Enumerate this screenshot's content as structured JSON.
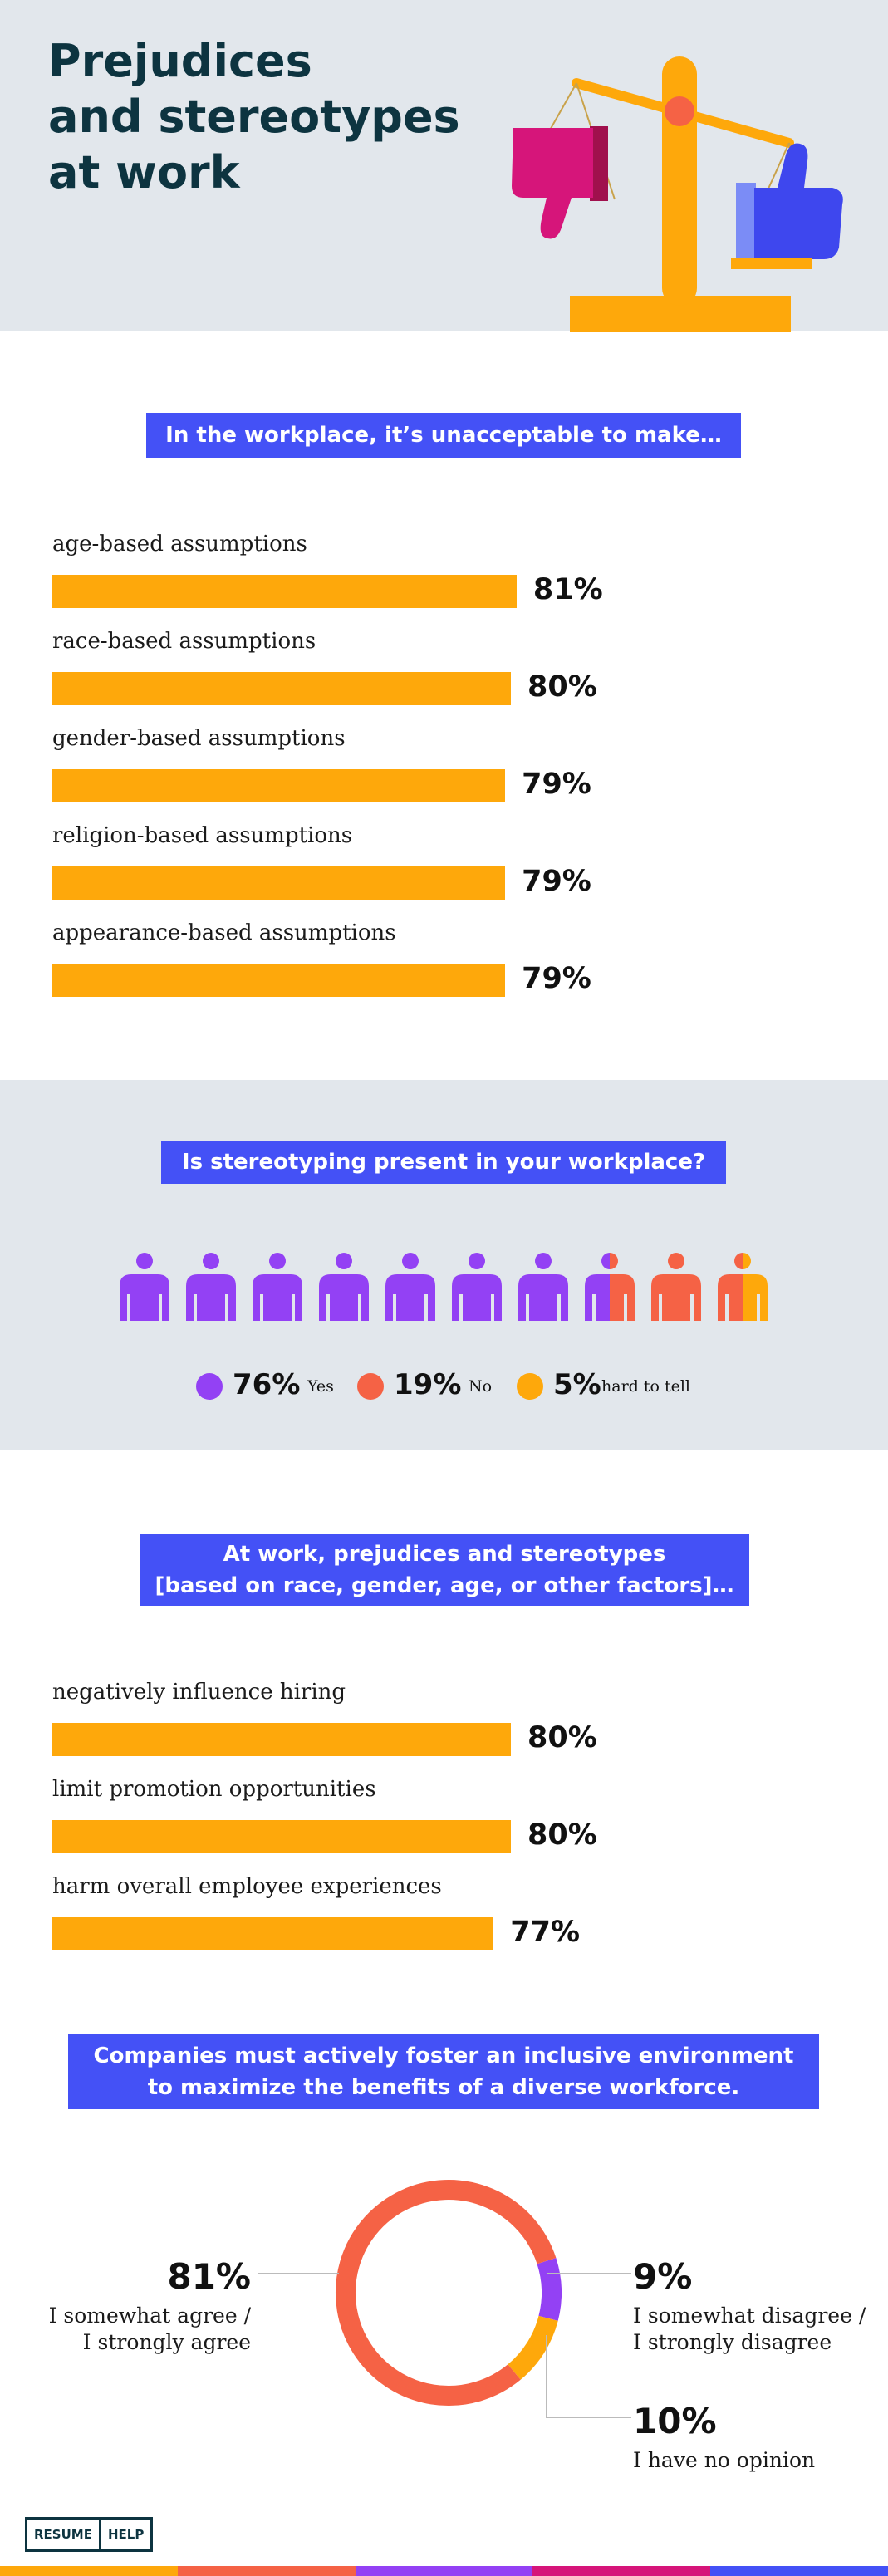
{
  "title": "Prejudices\nand stereotypes\nat work",
  "colors": {
    "bar": "#fea80b",
    "accent": "#4451f6",
    "purple": "#9341f4",
    "coral": "#f56245",
    "orange": "#fea80b",
    "magenta": "#d6157a",
    "dark": "#0d3440"
  },
  "illustration": {
    "icons": [
      "balance-scale-icon",
      "thumbs-down-icon",
      "thumbs-up-icon"
    ]
  },
  "chart_data": [
    {
      "type": "bar",
      "title": "In the workplace, it’s unacceptable to make…",
      "categories": [
        "age-based assumptions",
        "race-based assumptions",
        "gender-based assumptions",
        "religion-based assumptions",
        "appearance-based assumptions"
      ],
      "values": [
        81,
        80,
        79,
        79,
        79
      ],
      "value_labels": [
        "81%",
        "80%",
        "79%",
        "79%",
        "79%"
      ],
      "orientation": "horizontal"
    },
    {
      "type": "pictogram",
      "title": "Is stereotyping present in your workplace?",
      "series": [
        {
          "name": "Yes",
          "value": 76,
          "label": "76%",
          "color": "#9341f4"
        },
        {
          "name": "No",
          "value": 19,
          "label": "19%",
          "color": "#f56245"
        },
        {
          "name": "hard to tell",
          "value": 5,
          "label": "5%",
          "color": "#fea80b"
        }
      ],
      "icon_count": 10
    },
    {
      "type": "bar",
      "title": "At work, prejudices and stereotypes\n[based on race, gender, age, or other factors]…",
      "categories": [
        "negatively influence hiring",
        "limit promotion opportunities",
        "harm overall employee experiences"
      ],
      "values": [
        80,
        80,
        77
      ],
      "value_labels": [
        "80%",
        "80%",
        "77%"
      ],
      "orientation": "horizontal"
    },
    {
      "type": "pie",
      "subtype": "donut",
      "title": "Companies must actively foster an inclusive environment\nto maximize the benefits of a diverse workforce.",
      "series": [
        {
          "name": "I somewhat agree /\nI strongly agree",
          "value": 81,
          "label": "81%",
          "color": "#f56245"
        },
        {
          "name": "I somewhat disagree /\nI strongly disagree",
          "value": 9,
          "label": "9%",
          "color": "#9341f4"
        },
        {
          "name": "I have no opinion",
          "value": 10,
          "label": "10%",
          "color": "#fea80b"
        }
      ]
    }
  ],
  "logo": {
    "left": "RESUME",
    "right": "HELP"
  },
  "footer_stripe_colors": [
    "#fea80b",
    "#f56245",
    "#9341f4",
    "#d6157a",
    "#4451f6"
  ]
}
